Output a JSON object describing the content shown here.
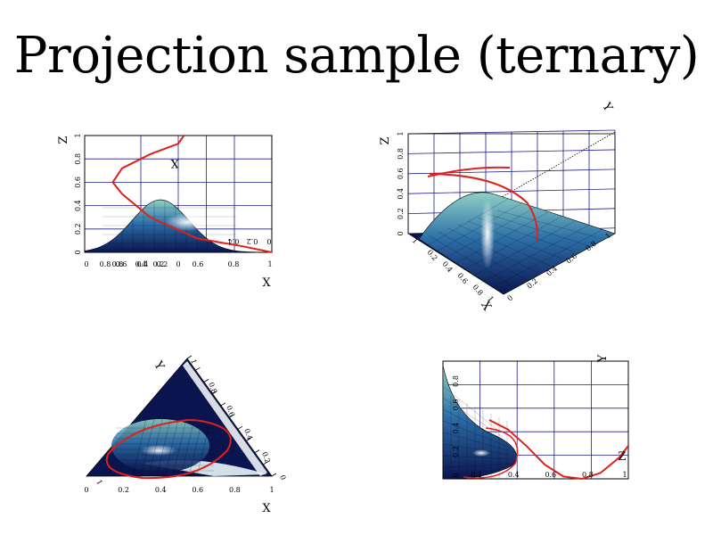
{
  "title": "Projection sample (ternary)",
  "colors": {
    "curve": "#e0201a",
    "grid": "#1f1f8a",
    "surface_dark": "#0a1550",
    "surface_mid": "#2d6fa8",
    "surface_light": "#cfe8f0"
  },
  "chart_data": [
    {
      "panel": "top-left",
      "type": "area",
      "view": "projection X-Z",
      "xlabel": "X",
      "ylabel": "Z",
      "inner_label": "X",
      "x_ticks": [
        "0.8",
        "0.6",
        "0.4",
        "0.2",
        "0",
        "0.6",
        "0.8",
        "1"
      ],
      "x_ticks_overlap": [
        "0",
        "0.8",
        "0.4",
        "0.2"
      ],
      "y_ticks": [
        "0",
        "0.2",
        "0.4",
        "0.6",
        "0.8",
        "1"
      ],
      "mirror_ticks": [
        "0.4",
        "0.2",
        "0"
      ],
      "xlim": [
        0,
        1
      ],
      "ylim": [
        0,
        1
      ],
      "surface_peak": {
        "x": 0.5,
        "z": 0.45
      },
      "curve": {
        "x": [
          1.0,
          0.85,
          0.6,
          0.35,
          0.2,
          0.15,
          0.2,
          0.35,
          0.5,
          0.53
        ],
        "z": [
          0.0,
          0.05,
          0.12,
          0.3,
          0.5,
          0.6,
          0.72,
          0.84,
          0.93,
          1.0
        ]
      }
    },
    {
      "panel": "top-right",
      "type": "area",
      "view": "3D ternary surface",
      "xlabel": "X",
      "ylabel": "Y",
      "zlabel": "Z",
      "z_ticks": [
        "0",
        "0.2",
        "0.4",
        "0.6",
        "0.8",
        "1"
      ],
      "x_ticks": [
        "1",
        "0.2",
        "0.4",
        "0.6",
        "0.8",
        "1"
      ],
      "y_ticks": [
        "0",
        "0.2",
        "0.4",
        "0.6",
        "0.8",
        "1"
      ],
      "corner_label_0": "0",
      "corner_label_1": "1",
      "zlim": [
        0,
        1
      ],
      "surface_peak": {
        "x": 0.5,
        "y": 0.3,
        "z": 0.45
      }
    },
    {
      "panel": "bottom-left",
      "type": "heatmap",
      "view": "ternary X-Y triangle",
      "xlabel": "X",
      "ylabel": "Y",
      "x_ticks": [
        "0",
        "0.2",
        "0.4",
        "0.6",
        "0.8",
        "1"
      ],
      "y_ticks": [
        "1",
        "0.8",
        "0.6",
        "0.4",
        "0.2",
        "0"
      ],
      "corner_label": "0",
      "edge_label": "1",
      "curve": {
        "x": [
          0.35,
          0.5,
          0.6,
          0.55,
          0.4,
          0.25,
          0.15,
          0.25,
          0.35
        ],
        "y": [
          0.05,
          0.1,
          0.25,
          0.35,
          0.35,
          0.28,
          0.15,
          0.05,
          0.05
        ]
      }
    },
    {
      "panel": "bottom-right",
      "type": "area",
      "view": "projection Z-Y (rotated)",
      "xlabel": "Z",
      "ylabel": "Y",
      "x_ticks": [
        "0.2",
        "0.4",
        "0.6",
        "0.8",
        "1"
      ],
      "y_ticks": [
        "0",
        "0.2",
        "0.4",
        "0.6",
        "0.8"
      ],
      "xlim": [
        0,
        1
      ],
      "ylim": [
        0,
        1
      ],
      "curve": {
        "x": [
          0.25,
          0.35,
          0.45,
          0.55,
          0.65,
          0.75,
          0.85,
          0.95,
          1.0
        ],
        "y": [
          0.5,
          0.42,
          0.28,
          0.12,
          0.02,
          0.0,
          0.05,
          0.18,
          0.28
        ]
      }
    }
  ]
}
